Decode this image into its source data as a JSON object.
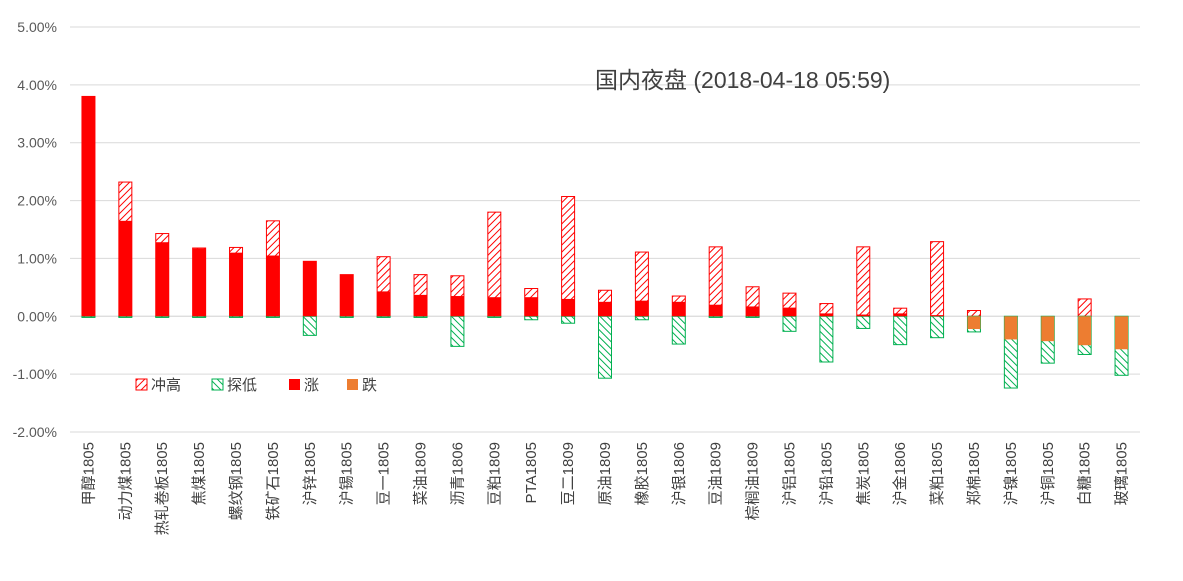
{
  "chart_data": {
    "type": "bar",
    "title": "国内夜盘 (2018-04-18 05:59)",
    "xlabel": "",
    "ylabel": "",
    "ylim": [
      -2,
      5
    ],
    "yticks": [
      "-2.00%",
      "-1.00%",
      "0.00%",
      "1.00%",
      "2.00%",
      "3.00%",
      "4.00%",
      "5.00%"
    ],
    "grid": true,
    "legend_position": "left-lower",
    "categories": [
      "甲醇1805",
      "动力煤1805",
      "热轧卷板1805",
      "焦煤1805",
      "螺纹钢1805",
      "铁矿石1805",
      "沪锌1805",
      "沪锡1805",
      "豆一1805",
      "菜油1809",
      "沥青1806",
      "豆粕1809",
      "PTA1805",
      "豆二1809",
      "原油1809",
      "橡胶1805",
      "沪银1806",
      "豆油1809",
      "棕榈油1809",
      "沪铝1805",
      "沪铅1805",
      "焦炭1805",
      "沪金1806",
      "菜粕1805",
      "郑棉1805",
      "沪镍1805",
      "沪铜1805",
      "白糖1805",
      "玻璃1805"
    ],
    "series": [
      {
        "name": "冲高",
        "color": "#ff0000",
        "pattern": "hatch-red",
        "values": [
          3.8,
          2.32,
          1.43,
          1.18,
          1.19,
          1.65,
          0.95,
          0.72,
          1.03,
          0.72,
          0.7,
          1.8,
          0.48,
          2.07,
          0.45,
          1.11,
          0.35,
          1.2,
          0.51,
          0.4,
          0.22,
          1.2,
          0.14,
          1.29,
          0.1,
          0.0,
          0.0,
          0.3,
          0.0
        ]
      },
      {
        "name": "探低",
        "color": "#00b050",
        "pattern": "hatch-green",
        "values": [
          -0.02,
          -0.02,
          -0.02,
          -0.02,
          -0.02,
          -0.02,
          -0.33,
          -0.02,
          -0.02,
          -0.02,
          -0.52,
          -0.02,
          -0.06,
          -0.12,
          -1.07,
          -0.06,
          -0.48,
          -0.02,
          -0.02,
          -0.26,
          -0.79,
          -0.21,
          -0.49,
          -0.37,
          -0.27,
          -1.24,
          -0.81,
          -0.66,
          -1.02
        ]
      },
      {
        "name": "涨",
        "color": "#ff0000",
        "pattern": "solid",
        "values": [
          3.8,
          1.65,
          1.28,
          1.17,
          1.1,
          1.05,
          0.95,
          0.72,
          0.43,
          0.37,
          0.35,
          0.33,
          0.33,
          0.3,
          0.25,
          0.27,
          0.25,
          0.2,
          0.17,
          0.15,
          0.05,
          0.03,
          0.05,
          0.02,
          0,
          0,
          0,
          0,
          0
        ]
      },
      {
        "name": "跌",
        "color": "#ed7d31",
        "pattern": "solid",
        "values": [
          0,
          0,
          0,
          0,
          0,
          0,
          0,
          0,
          0,
          0,
          0,
          0,
          0,
          0,
          0,
          0,
          0,
          0,
          0,
          0,
          0,
          0,
          0,
          0,
          -0.22,
          -0.4,
          -0.43,
          -0.5,
          -0.57
        ]
      }
    ]
  }
}
